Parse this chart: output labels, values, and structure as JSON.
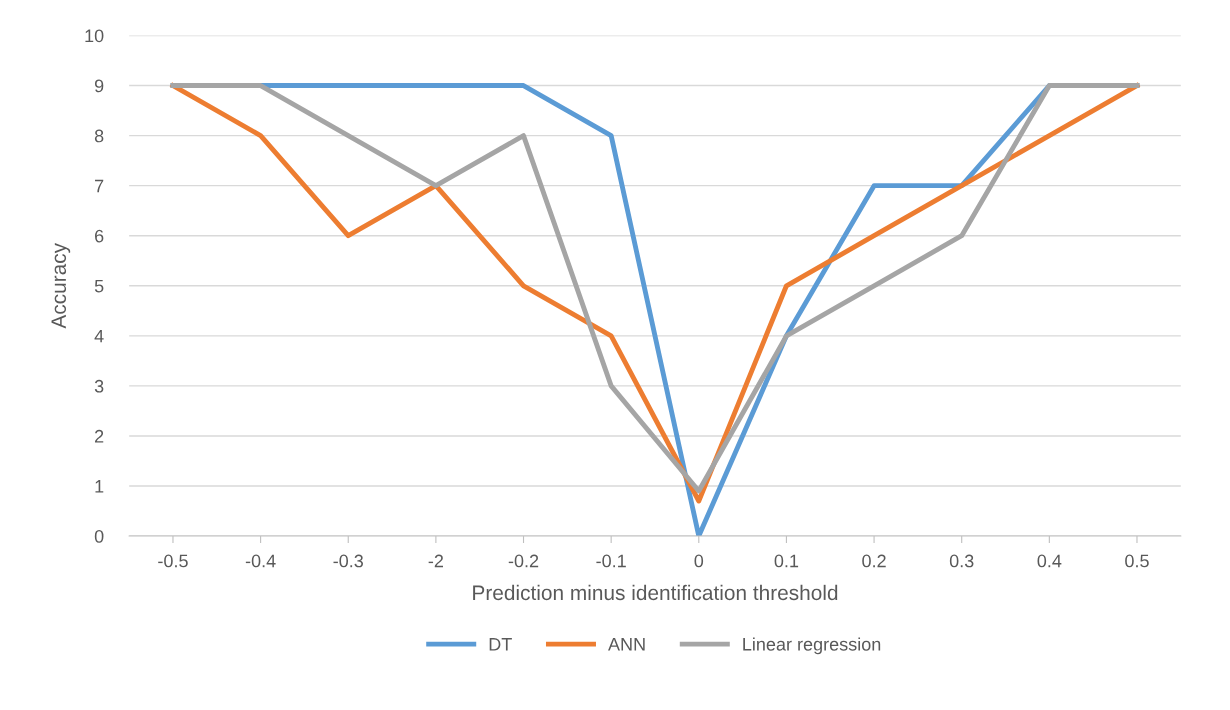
{
  "chart_data": {
    "type": "line",
    "xlabel": "Prediction minus identification threshold",
    "ylabel": "Accuracy",
    "categories": [
      "-0.5",
      "-0.4",
      "-0.3",
      "-2",
      "-0.2",
      "-0.1",
      "0",
      "0.1",
      "0.2",
      "0.3",
      "0.4",
      "0.5"
    ],
    "series": [
      {
        "name": "DT",
        "color": "#5b9bd5",
        "values": [
          9,
          9,
          9,
          9,
          9,
          8,
          0,
          4,
          7,
          7,
          9,
          9
        ]
      },
      {
        "name": "ANN",
        "color": "#ed7d31",
        "values": [
          9,
          8,
          6,
          7,
          5,
          4,
          0.7,
          5,
          6,
          7,
          8,
          9
        ]
      },
      {
        "name": "Linear regression",
        "color": "#a5a5a5",
        "values": [
          9,
          9,
          8,
          7,
          8,
          3,
          0.9,
          4,
          5,
          6,
          9,
          9
        ]
      }
    ],
    "ylim": [
      0,
      10
    ],
    "yticks": [
      0,
      1,
      2,
      3,
      4,
      5,
      6,
      7,
      8,
      9,
      10
    ],
    "grid": "y",
    "legend": "bottom",
    "marker": "none",
    "line_style": "solid"
  }
}
